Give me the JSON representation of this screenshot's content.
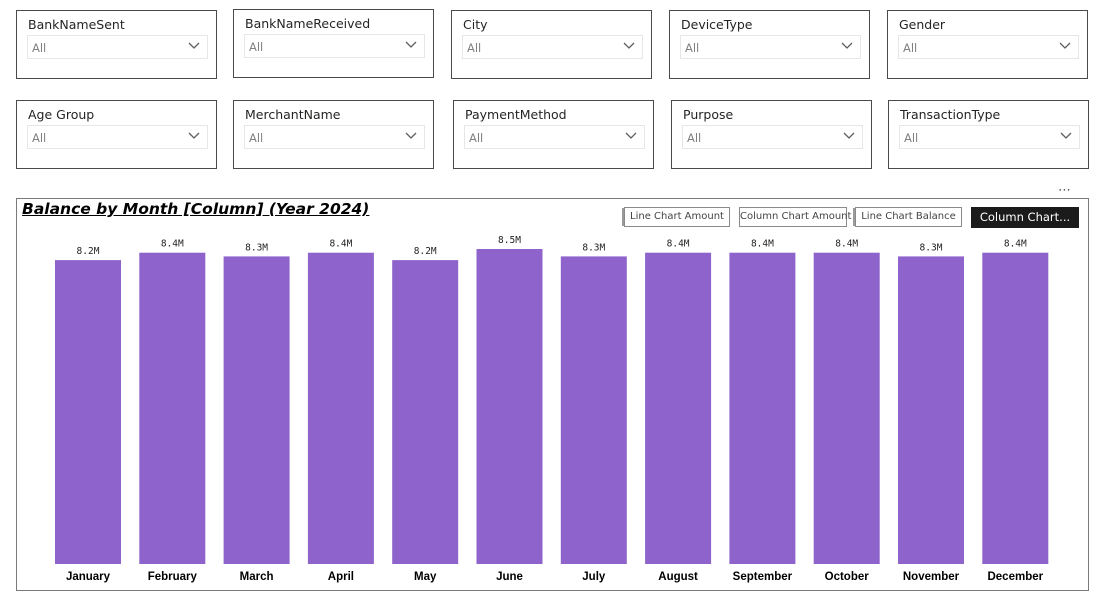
{
  "slicers": [
    {
      "title": "BankNameSent",
      "value": "All"
    },
    {
      "title": "BankNameReceived",
      "value": "All"
    },
    {
      "title": "City",
      "value": "All"
    },
    {
      "title": "DeviceType",
      "value": "All"
    },
    {
      "title": "Gender",
      "value": "All"
    },
    {
      "title": "Age Group",
      "value": "All"
    },
    {
      "title": "MerchantName",
      "value": "All"
    },
    {
      "title": "PaymentMethod",
      "value": "All"
    },
    {
      "title": "Purpose",
      "value": "All"
    },
    {
      "title": "TransactionType",
      "value": "All"
    }
  ],
  "chart_panel": {
    "more_icon": "ellipsis-icon",
    "buttons": [
      {
        "label": "Line Chart Amount",
        "active": false
      },
      {
        "label": "Column Chart Amount",
        "active": false
      },
      {
        "label": "Line Chart Balance",
        "active": false
      },
      {
        "label": "Column Chart...",
        "active": true
      }
    ]
  },
  "chart_data": {
    "type": "bar",
    "title": "Balance by Month [Column] (Year 2024)",
    "xlabel": "",
    "ylabel": "",
    "categories": [
      "January",
      "February",
      "March",
      "April",
      "May",
      "June",
      "July",
      "August",
      "September",
      "October",
      "November",
      "December"
    ],
    "values": [
      8.2,
      8.4,
      8.3,
      8.4,
      8.2,
      8.5,
      8.3,
      8.4,
      8.4,
      8.4,
      8.3,
      8.4
    ],
    "data_labels": [
      "8.2M",
      "8.4M",
      "8.3M",
      "8.4M",
      "8.2M",
      "8.5M",
      "8.3M",
      "8.4M",
      "8.4M",
      "8.4M",
      "8.3M",
      "8.4M"
    ],
    "value_unit": "M",
    "ylim": [
      0,
      8.5
    ],
    "grid": false,
    "legend": "none",
    "bar_color": "#8E63CB"
  }
}
